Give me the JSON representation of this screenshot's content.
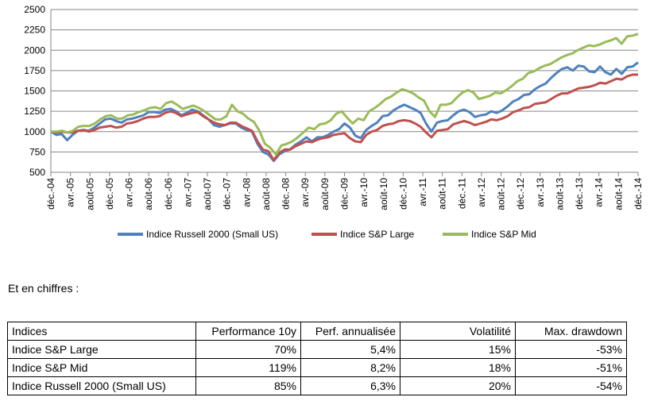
{
  "chart_data": {
    "type": "line",
    "title": "",
    "xlabel": "",
    "ylabel": "",
    "ylim": [
      500,
      2500
    ],
    "yticks": [
      500,
      750,
      1000,
      1250,
      1500,
      1750,
      2000,
      2250,
      2500
    ],
    "grid": true,
    "legend": "bottom",
    "xtick_labels": [
      "déc.-04",
      "avr.-05",
      "août-05",
      "déc.-05",
      "avr.-06",
      "août-06",
      "déc.-06",
      "avr.-07",
      "août-07",
      "déc.-07",
      "avr.-08",
      "août-08",
      "déc.-08",
      "avr.-09",
      "août-09",
      "déc.-09",
      "avr.-10",
      "août-10",
      "déc.-10",
      "avr.-11",
      "août-11",
      "déc.-11",
      "avr.-12",
      "août-12",
      "déc.-12",
      "avr.-13",
      "août-13",
      "déc.-13",
      "avr.-14",
      "août-14",
      "déc.-14"
    ],
    "series": [
      {
        "name": "Indice Russell 2000 (Small US)",
        "color": "#4f81bd",
        "values": [
          1000,
          960,
          970,
          895,
          960,
          1010,
          1020,
          1010,
          1050,
          1100,
          1150,
          1160,
          1130,
          1110,
          1150,
          1160,
          1180,
          1200,
          1240,
          1240,
          1230,
          1270,
          1280,
          1250,
          1200,
          1230,
          1270,
          1250,
          1200,
          1150,
          1080,
          1060,
          1080,
          1100,
          1100,
          1050,
          1020,
          1000,
          850,
          750,
          720,
          640,
          720,
          760,
          780,
          840,
          880,
          930,
          880,
          930,
          930,
          960,
          1000,
          1030,
          1100,
          1050,
          950,
          920,
          1020,
          1070,
          1110,
          1190,
          1200,
          1260,
          1300,
          1330,
          1300,
          1270,
          1230,
          1100,
          1000,
          1110,
          1130,
          1140,
          1200,
          1250,
          1270,
          1240,
          1180,
          1200,
          1210,
          1250,
          1230,
          1260,
          1310,
          1370,
          1400,
          1450,
          1460,
          1520,
          1560,
          1590,
          1660,
          1720,
          1770,
          1790,
          1750,
          1810,
          1800,
          1740,
          1730,
          1800,
          1730,
          1700,
          1770,
          1710,
          1790,
          1800,
          1850
        ]
      },
      {
        "name": "Indice S&P Large",
        "color": "#c0504d",
        "values": [
          1000,
          990,
          1000,
          990,
          990,
          1010,
          1020,
          1000,
          1020,
          1050,
          1060,
          1070,
          1050,
          1060,
          1100,
          1110,
          1130,
          1160,
          1180,
          1180,
          1190,
          1230,
          1250,
          1230,
          1190,
          1210,
          1230,
          1240,
          1190,
          1150,
          1110,
          1090,
          1080,
          1110,
          1110,
          1070,
          1040,
          1010,
          880,
          780,
          760,
          650,
          740,
          780,
          780,
          820,
          850,
          880,
          870,
          900,
          920,
          930,
          960,
          970,
          980,
          920,
          880,
          870,
          960,
          1000,
          1020,
          1070,
          1090,
          1100,
          1130,
          1140,
          1130,
          1100,
          1060,
          990,
          930,
          1010,
          1020,
          1030,
          1090,
          1110,
          1130,
          1110,
          1080,
          1100,
          1120,
          1150,
          1140,
          1160,
          1190,
          1240,
          1260,
          1290,
          1300,
          1340,
          1350,
          1360,
          1400,
          1440,
          1470,
          1470,
          1500,
          1530,
          1540,
          1550,
          1570,
          1600,
          1590,
          1620,
          1650,
          1640,
          1680,
          1700,
          1700
        ]
      },
      {
        "name": "Indice S&P Mid",
        "color": "#9bbb59",
        "values": [
          1000,
          1000,
          1010,
          990,
          1010,
          1060,
          1070,
          1070,
          1100,
          1150,
          1190,
          1200,
          1160,
          1160,
          1200,
          1210,
          1240,
          1260,
          1290,
          1300,
          1280,
          1350,
          1370,
          1330,
          1280,
          1300,
          1320,
          1290,
          1250,
          1200,
          1150,
          1150,
          1190,
          1330,
          1250,
          1220,
          1160,
          1120,
          1010,
          850,
          800,
          720,
          830,
          850,
          880,
          930,
          990,
          1050,
          1030,
          1090,
          1100,
          1140,
          1220,
          1250,
          1170,
          1100,
          1160,
          1140,
          1250,
          1290,
          1340,
          1400,
          1430,
          1480,
          1520,
          1500,
          1470,
          1420,
          1380,
          1250,
          1180,
          1330,
          1330,
          1350,
          1420,
          1480,
          1510,
          1480,
          1400,
          1420,
          1440,
          1480,
          1470,
          1510,
          1560,
          1620,
          1650,
          1720,
          1740,
          1780,
          1810,
          1830,
          1870,
          1910,
          1940,
          1960,
          2000,
          2030,
          2060,
          2050,
          2070,
          2100,
          2120,
          2150,
          2080,
          2170,
          2180,
          2200
        ]
      }
    ]
  },
  "subtitle": "Et en chiffres :",
  "table": {
    "headers": [
      "Indices",
      "Performance 10y",
      "Perf. annualisée",
      "Volatilité",
      "Max. drawdown"
    ],
    "rows": [
      [
        "Indice S&P Large",
        "70%",
        "5,4%",
        "15%",
        "-53%"
      ],
      [
        "Indice S&P Mid",
        "119%",
        "8,2%",
        "18%",
        "-51%"
      ],
      [
        "Indice Russell 2000 (Small US)",
        "85%",
        "6,3%",
        "20%",
        "-54%"
      ]
    ]
  }
}
